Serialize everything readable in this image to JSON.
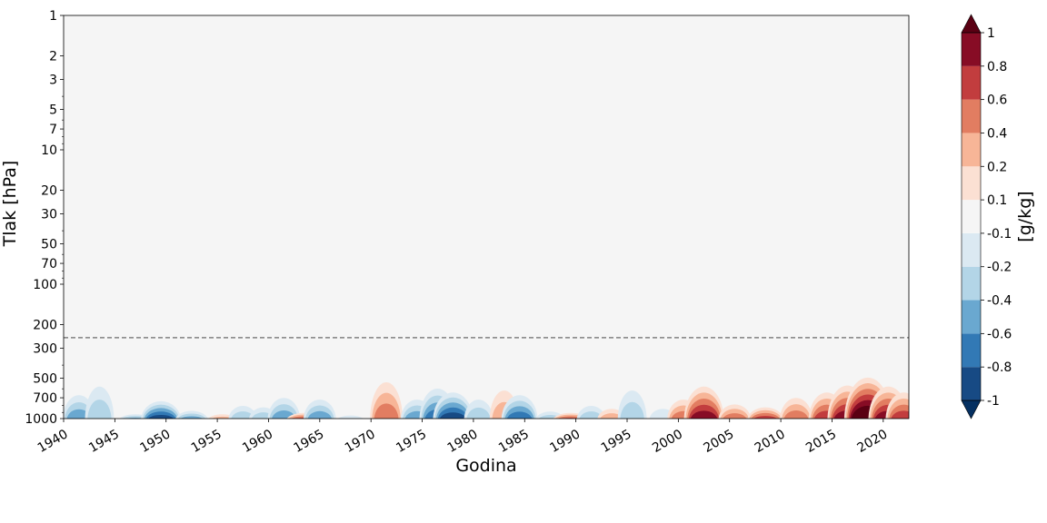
{
  "chart_data": {
    "type": "heatmap",
    "xlabel": "Godina",
    "ylabel": "Tlak [hPa]",
    "colorbar_label": "[g/kg]",
    "x_range": [
      1940,
      2022.5
    ],
    "x_ticks": [
      1940,
      1945,
      1950,
      1955,
      1960,
      1965,
      1970,
      1975,
      1980,
      1985,
      1990,
      1995,
      2000,
      2005,
      2010,
      2015,
      2020
    ],
    "y_scale": "log",
    "y_inverted": true,
    "y_range": [
      1,
      1000
    ],
    "y_ticks": [
      1,
      2,
      3,
      5,
      7,
      10,
      20,
      30,
      50,
      70,
      100,
      200,
      300,
      500,
      700,
      1000
    ],
    "tropopause_line_hPa": 250,
    "colorbar": {
      "levels": [
        -1,
        -0.8,
        -0.6,
        -0.4,
        -0.2,
        -0.1,
        0.1,
        0.2,
        0.4,
        0.6,
        0.8,
        1
      ],
      "tick_labels": [
        "-1",
        "-0.8",
        "-0.6",
        "-0.4",
        "-0.2",
        "-0.1",
        "0.1",
        "0.2",
        "0.4",
        "0.6",
        "0.8",
        "1"
      ],
      "colors": [
        "#053061",
        "#174a84",
        "#3279b5",
        "#6aa8d0",
        "#b3d5e7",
        "#dbe9f2",
        "#f5f5f5",
        "#fbe0d3",
        "#f7b597",
        "#e27d61",
        "#c23d3e",
        "#870c25",
        "#5a0013"
      ],
      "extend": "both"
    },
    "anomalies": [
      {
        "year": 1941.5,
        "p_top": 650,
        "value": -0.4
      },
      {
        "year": 1943.5,
        "p_top": 560,
        "value": -0.2
      },
      {
        "year": 1947.0,
        "p_top": 900,
        "value": -0.4
      },
      {
        "year": 1949.5,
        "p_top": 720,
        "value": -0.8
      },
      {
        "year": 1952.5,
        "p_top": 850,
        "value": -0.4
      },
      {
        "year": 1955.5,
        "p_top": 900,
        "value": 0.2
      },
      {
        "year": 1957.5,
        "p_top": 780,
        "value": -0.2
      },
      {
        "year": 1959.5,
        "p_top": 800,
        "value": -0.2
      },
      {
        "year": 1961.5,
        "p_top": 680,
        "value": -0.4
      },
      {
        "year": 1963.5,
        "p_top": 880,
        "value": 0.6
      },
      {
        "year": 1965.0,
        "p_top": 700,
        "value": -0.4
      },
      {
        "year": 1968.0,
        "p_top": 920,
        "value": -0.1
      },
      {
        "year": 1971.5,
        "p_top": 520,
        "value": 0.4
      },
      {
        "year": 1974.5,
        "p_top": 700,
        "value": -0.4
      },
      {
        "year": 1976.5,
        "p_top": 580,
        "value": -0.6
      },
      {
        "year": 1978.0,
        "p_top": 620,
        "value": -0.8
      },
      {
        "year": 1980.5,
        "p_top": 700,
        "value": -0.2
      },
      {
        "year": 1983.0,
        "p_top": 600,
        "value": 0.2
      },
      {
        "year": 1984.5,
        "p_top": 650,
        "value": -0.6
      },
      {
        "year": 1987.5,
        "p_top": 860,
        "value": -0.2
      },
      {
        "year": 1989.5,
        "p_top": 880,
        "value": 0.6
      },
      {
        "year": 1991.5,
        "p_top": 780,
        "value": -0.2
      },
      {
        "year": 1993.5,
        "p_top": 820,
        "value": 0.2
      },
      {
        "year": 1995.5,
        "p_top": 600,
        "value": -0.2
      },
      {
        "year": 1998.5,
        "p_top": 820,
        "value": -0.1
      },
      {
        "year": 2000.5,
        "p_top": 700,
        "value": 0.4
      },
      {
        "year": 2002.5,
        "p_top": 560,
        "value": 0.8
      },
      {
        "year": 2005.5,
        "p_top": 760,
        "value": 0.4
      },
      {
        "year": 2008.5,
        "p_top": 800,
        "value": 0.6
      },
      {
        "year": 2011.5,
        "p_top": 680,
        "value": 0.4
      },
      {
        "year": 2014.5,
        "p_top": 620,
        "value": 0.6
      },
      {
        "year": 2016.5,
        "p_top": 550,
        "value": 0.8
      },
      {
        "year": 2018.5,
        "p_top": 480,
        "value": 1.2
      },
      {
        "year": 2020.5,
        "p_top": 560,
        "value": 0.8
      },
      {
        "year": 2022.0,
        "p_top": 620,
        "value": 0.6
      }
    ]
  }
}
